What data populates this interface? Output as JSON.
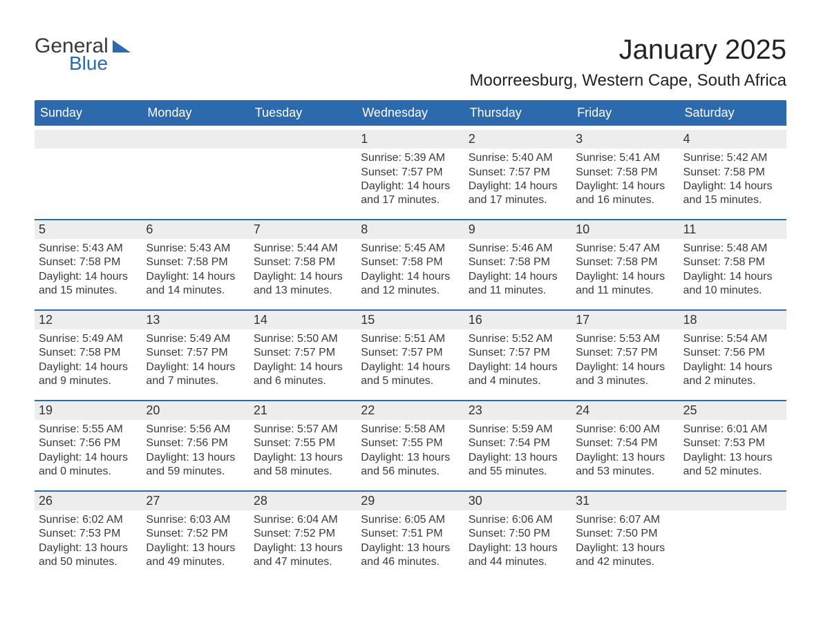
{
  "brand": {
    "general": "General",
    "blue": "Blue",
    "triangle_color": "#2d6aad"
  },
  "title": "January 2025",
  "location": "Moorreesburg, Western Cape, South Africa",
  "colors": {
    "header_bg": "#2d6aad",
    "header_fg": "#ffffff",
    "daynum_bar": "#ededed",
    "text": "#3a3a3a",
    "rule": "#2d6aad",
    "page_bg": "#ffffff"
  },
  "typography": {
    "month_title_fontsize": 40,
    "location_fontsize": 24,
    "header_fontsize": 18,
    "daynum_fontsize": 18,
    "body_fontsize": 16
  },
  "weekdays": [
    "Sunday",
    "Monday",
    "Tuesday",
    "Wednesday",
    "Thursday",
    "Friday",
    "Saturday"
  ],
  "weeks": [
    [
      null,
      null,
      null,
      {
        "n": "1",
        "sunrise": "Sunrise: 5:39 AM",
        "sunset": "Sunset: 7:57 PM",
        "daylight1": "Daylight: 14 hours",
        "daylight2": "and 17 minutes."
      },
      {
        "n": "2",
        "sunrise": "Sunrise: 5:40 AM",
        "sunset": "Sunset: 7:57 PM",
        "daylight1": "Daylight: 14 hours",
        "daylight2": "and 17 minutes."
      },
      {
        "n": "3",
        "sunrise": "Sunrise: 5:41 AM",
        "sunset": "Sunset: 7:58 PM",
        "daylight1": "Daylight: 14 hours",
        "daylight2": "and 16 minutes."
      },
      {
        "n": "4",
        "sunrise": "Sunrise: 5:42 AM",
        "sunset": "Sunset: 7:58 PM",
        "daylight1": "Daylight: 14 hours",
        "daylight2": "and 15 minutes."
      }
    ],
    [
      {
        "n": "5",
        "sunrise": "Sunrise: 5:43 AM",
        "sunset": "Sunset: 7:58 PM",
        "daylight1": "Daylight: 14 hours",
        "daylight2": "and 15 minutes."
      },
      {
        "n": "6",
        "sunrise": "Sunrise: 5:43 AM",
        "sunset": "Sunset: 7:58 PM",
        "daylight1": "Daylight: 14 hours",
        "daylight2": "and 14 minutes."
      },
      {
        "n": "7",
        "sunrise": "Sunrise: 5:44 AM",
        "sunset": "Sunset: 7:58 PM",
        "daylight1": "Daylight: 14 hours",
        "daylight2": "and 13 minutes."
      },
      {
        "n": "8",
        "sunrise": "Sunrise: 5:45 AM",
        "sunset": "Sunset: 7:58 PM",
        "daylight1": "Daylight: 14 hours",
        "daylight2": "and 12 minutes."
      },
      {
        "n": "9",
        "sunrise": "Sunrise: 5:46 AM",
        "sunset": "Sunset: 7:58 PM",
        "daylight1": "Daylight: 14 hours",
        "daylight2": "and 11 minutes."
      },
      {
        "n": "10",
        "sunrise": "Sunrise: 5:47 AM",
        "sunset": "Sunset: 7:58 PM",
        "daylight1": "Daylight: 14 hours",
        "daylight2": "and 11 minutes."
      },
      {
        "n": "11",
        "sunrise": "Sunrise: 5:48 AM",
        "sunset": "Sunset: 7:58 PM",
        "daylight1": "Daylight: 14 hours",
        "daylight2": "and 10 minutes."
      }
    ],
    [
      {
        "n": "12",
        "sunrise": "Sunrise: 5:49 AM",
        "sunset": "Sunset: 7:58 PM",
        "daylight1": "Daylight: 14 hours",
        "daylight2": "and 9 minutes."
      },
      {
        "n": "13",
        "sunrise": "Sunrise: 5:49 AM",
        "sunset": "Sunset: 7:57 PM",
        "daylight1": "Daylight: 14 hours",
        "daylight2": "and 7 minutes."
      },
      {
        "n": "14",
        "sunrise": "Sunrise: 5:50 AM",
        "sunset": "Sunset: 7:57 PM",
        "daylight1": "Daylight: 14 hours",
        "daylight2": "and 6 minutes."
      },
      {
        "n": "15",
        "sunrise": "Sunrise: 5:51 AM",
        "sunset": "Sunset: 7:57 PM",
        "daylight1": "Daylight: 14 hours",
        "daylight2": "and 5 minutes."
      },
      {
        "n": "16",
        "sunrise": "Sunrise: 5:52 AM",
        "sunset": "Sunset: 7:57 PM",
        "daylight1": "Daylight: 14 hours",
        "daylight2": "and 4 minutes."
      },
      {
        "n": "17",
        "sunrise": "Sunrise: 5:53 AM",
        "sunset": "Sunset: 7:57 PM",
        "daylight1": "Daylight: 14 hours",
        "daylight2": "and 3 minutes."
      },
      {
        "n": "18",
        "sunrise": "Sunrise: 5:54 AM",
        "sunset": "Sunset: 7:56 PM",
        "daylight1": "Daylight: 14 hours",
        "daylight2": "and 2 minutes."
      }
    ],
    [
      {
        "n": "19",
        "sunrise": "Sunrise: 5:55 AM",
        "sunset": "Sunset: 7:56 PM",
        "daylight1": "Daylight: 14 hours",
        "daylight2": "and 0 minutes."
      },
      {
        "n": "20",
        "sunrise": "Sunrise: 5:56 AM",
        "sunset": "Sunset: 7:56 PM",
        "daylight1": "Daylight: 13 hours",
        "daylight2": "and 59 minutes."
      },
      {
        "n": "21",
        "sunrise": "Sunrise: 5:57 AM",
        "sunset": "Sunset: 7:55 PM",
        "daylight1": "Daylight: 13 hours",
        "daylight2": "and 58 minutes."
      },
      {
        "n": "22",
        "sunrise": "Sunrise: 5:58 AM",
        "sunset": "Sunset: 7:55 PM",
        "daylight1": "Daylight: 13 hours",
        "daylight2": "and 56 minutes."
      },
      {
        "n": "23",
        "sunrise": "Sunrise: 5:59 AM",
        "sunset": "Sunset: 7:54 PM",
        "daylight1": "Daylight: 13 hours",
        "daylight2": "and 55 minutes."
      },
      {
        "n": "24",
        "sunrise": "Sunrise: 6:00 AM",
        "sunset": "Sunset: 7:54 PM",
        "daylight1": "Daylight: 13 hours",
        "daylight2": "and 53 minutes."
      },
      {
        "n": "25",
        "sunrise": "Sunrise: 6:01 AM",
        "sunset": "Sunset: 7:53 PM",
        "daylight1": "Daylight: 13 hours",
        "daylight2": "and 52 minutes."
      }
    ],
    [
      {
        "n": "26",
        "sunrise": "Sunrise: 6:02 AM",
        "sunset": "Sunset: 7:53 PM",
        "daylight1": "Daylight: 13 hours",
        "daylight2": "and 50 minutes."
      },
      {
        "n": "27",
        "sunrise": "Sunrise: 6:03 AM",
        "sunset": "Sunset: 7:52 PM",
        "daylight1": "Daylight: 13 hours",
        "daylight2": "and 49 minutes."
      },
      {
        "n": "28",
        "sunrise": "Sunrise: 6:04 AM",
        "sunset": "Sunset: 7:52 PM",
        "daylight1": "Daylight: 13 hours",
        "daylight2": "and 47 minutes."
      },
      {
        "n": "29",
        "sunrise": "Sunrise: 6:05 AM",
        "sunset": "Sunset: 7:51 PM",
        "daylight1": "Daylight: 13 hours",
        "daylight2": "and 46 minutes."
      },
      {
        "n": "30",
        "sunrise": "Sunrise: 6:06 AM",
        "sunset": "Sunset: 7:50 PM",
        "daylight1": "Daylight: 13 hours",
        "daylight2": "and 44 minutes."
      },
      {
        "n": "31",
        "sunrise": "Sunrise: 6:07 AM",
        "sunset": "Sunset: 7:50 PM",
        "daylight1": "Daylight: 13 hours",
        "daylight2": "and 42 minutes."
      },
      null
    ]
  ]
}
